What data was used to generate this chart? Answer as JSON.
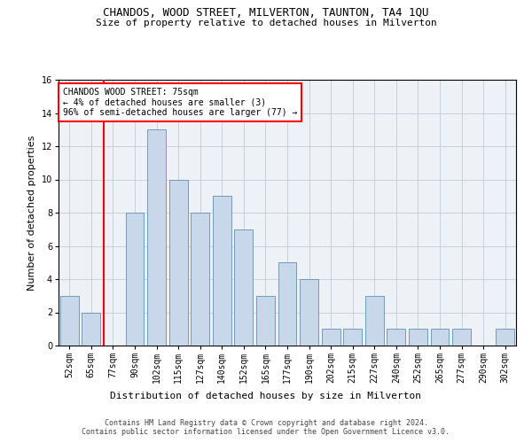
{
  "title": "CHANDOS, WOOD STREET, MILVERTON, TAUNTON, TA4 1QU",
  "subtitle": "Size of property relative to detached houses in Milverton",
  "xlabel": "Distribution of detached houses by size in Milverton",
  "ylabel": "Number of detached properties",
  "categories": [
    "52sqm",
    "65sqm",
    "77sqm",
    "90sqm",
    "102sqm",
    "115sqm",
    "127sqm",
    "140sqm",
    "152sqm",
    "165sqm",
    "177sqm",
    "190sqm",
    "202sqm",
    "215sqm",
    "227sqm",
    "240sqm",
    "252sqm",
    "265sqm",
    "277sqm",
    "290sqm",
    "302sqm"
  ],
  "values": [
    3,
    2,
    0,
    8,
    13,
    10,
    8,
    9,
    7,
    3,
    5,
    4,
    1,
    1,
    3,
    1,
    1,
    1,
    1,
    0,
    1
  ],
  "bar_color": "#c8d8ea",
  "bar_edge_color": "#6090b0",
  "vline_color": "red",
  "vline_index": 2,
  "annotation_text": "CHANDOS WOOD STREET: 75sqm\n← 4% of detached houses are smaller (3)\n96% of semi-detached houses are larger (77) →",
  "annotation_box_color": "white",
  "annotation_box_edge_color": "red",
  "grid_color": "#c0ccd8",
  "background_color": "#eef2f7",
  "ylim": [
    0,
    16
  ],
  "yticks": [
    0,
    2,
    4,
    6,
    8,
    10,
    12,
    14,
    16
  ],
  "footer_line1": "Contains HM Land Registry data © Crown copyright and database right 2024.",
  "footer_line2": "Contains public sector information licensed under the Open Government Licence v3.0.",
  "title_fontsize": 9,
  "subtitle_fontsize": 8,
  "xlabel_fontsize": 8,
  "ylabel_fontsize": 8,
  "tick_fontsize": 7,
  "annotation_fontsize": 7,
  "footer_fontsize": 6
}
